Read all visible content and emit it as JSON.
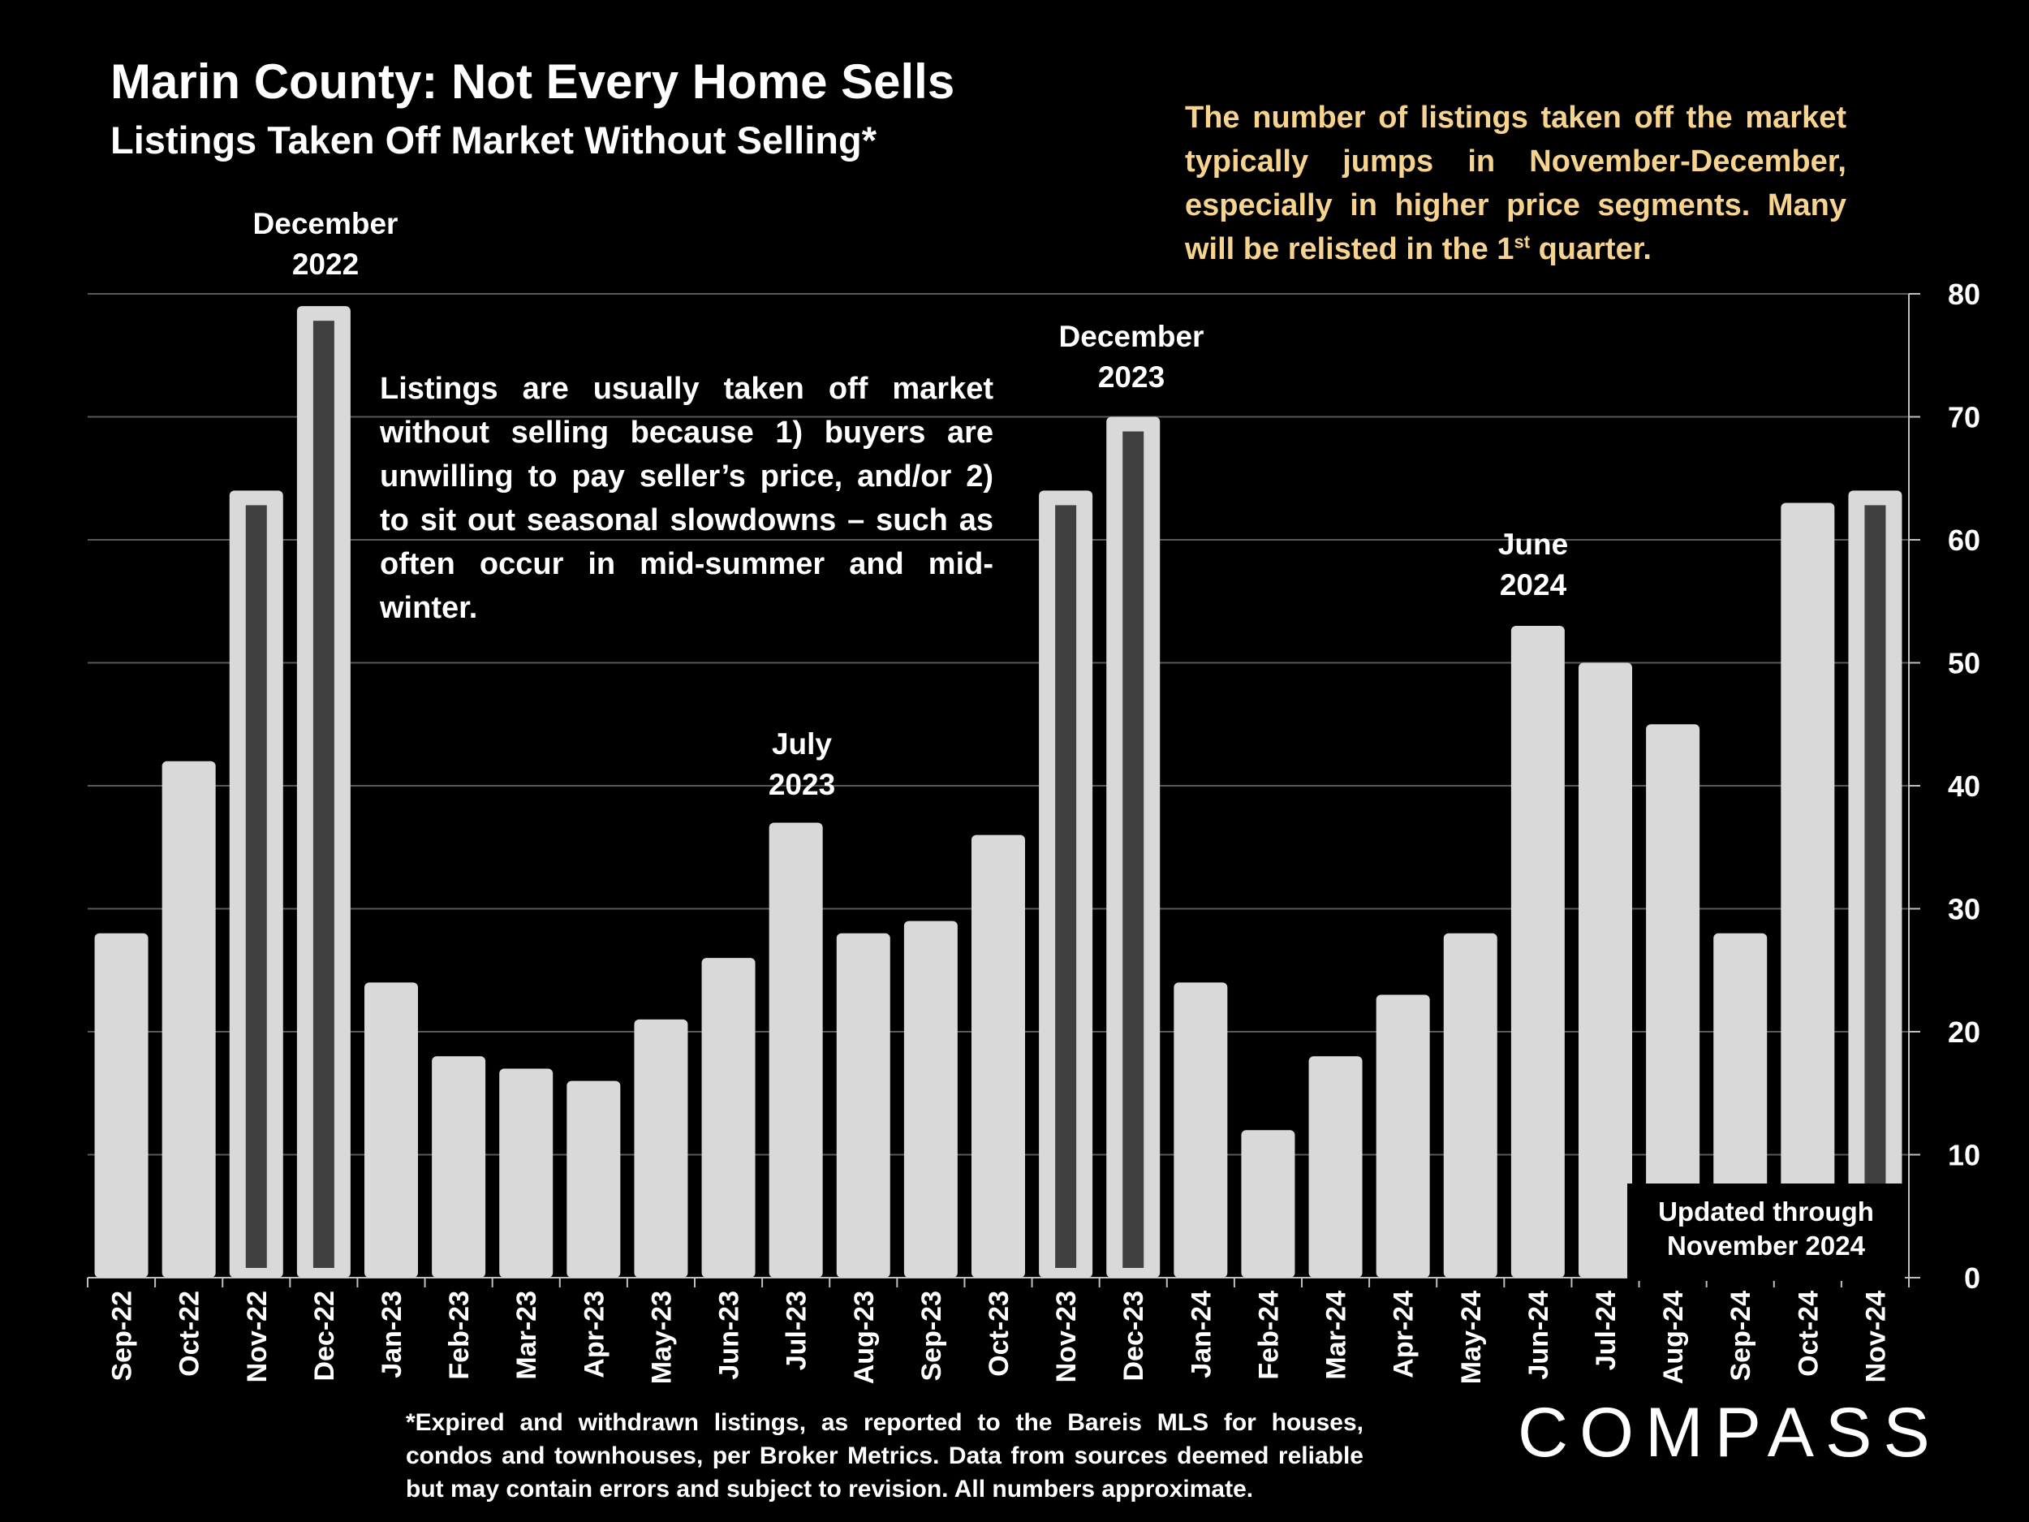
{
  "title": "Marin County: Not Every Home Sells",
  "subtitle": "Listings Taken Off Market Without Selling*",
  "note": {
    "text": "The number of listings taken off the market typically jumps in November-December, especially in higher price segments. Many will be relisted in the 1",
    "sup": "st",
    "tail": " quarter."
  },
  "explanation": "Listings are usually taken off market without selling because 1) buyers are unwilling to pay seller’s price, and/or 2) to sit out seasonal slowdowns – such as often occur in mid-summer and mid-winter.",
  "annotations": {
    "dec2022": [
      "December",
      "2022"
    ],
    "jul2023": [
      "July",
      "2023"
    ],
    "dec2023": [
      "December",
      "2023"
    ],
    "jun2024": [
      "June",
      "2024"
    ]
  },
  "updated": [
    "Updated through",
    "November 2024"
  ],
  "footnote": "*Expired and withdrawn listings, as reported to the Bareis MLS for houses, condos and townhouses, per Broker Metrics. Data from sources deemed reliable but may contain errors and subject to revision. All numbers approximate.",
  "logo": "COMPASS",
  "colors": {
    "bar": "#d9d9d9",
    "highlight_inner": "#404040",
    "gridline": "#595959",
    "note": "#f6d48f"
  },
  "chart_data": {
    "type": "bar",
    "title": "Listings Taken Off Market Without Selling*",
    "xlabel": "",
    "ylabel": "",
    "y_axis_side": "right",
    "ylim": [
      0,
      80
    ],
    "yticks": [
      0,
      10,
      20,
      30,
      40,
      50,
      60,
      70,
      80
    ],
    "grid": true,
    "categories": [
      "Sep-22",
      "Oct-22",
      "Nov-22",
      "Dec-22",
      "Jan-23",
      "Feb-23",
      "Mar-23",
      "Apr-23",
      "May-23",
      "Jun-23",
      "Jul-23",
      "Aug-23",
      "Sep-23",
      "Oct-23",
      "Nov-23",
      "Dec-23",
      "Jan-24",
      "Feb-24",
      "Mar-24",
      "Apr-24",
      "May-24",
      "Jun-24",
      "Jul-24",
      "Aug-24",
      "Sep-24",
      "Oct-24",
      "Nov-24"
    ],
    "values": [
      28,
      42,
      64,
      79,
      24,
      18,
      17,
      16,
      21,
      26,
      37,
      28,
      29,
      36,
      64,
      70,
      24,
      12,
      18,
      23,
      28,
      53,
      50,
      45,
      28,
      63,
      64
    ],
    "highlighted": [
      "Nov-22",
      "Dec-22",
      "Nov-23",
      "Dec-23",
      "Nov-24"
    ]
  }
}
